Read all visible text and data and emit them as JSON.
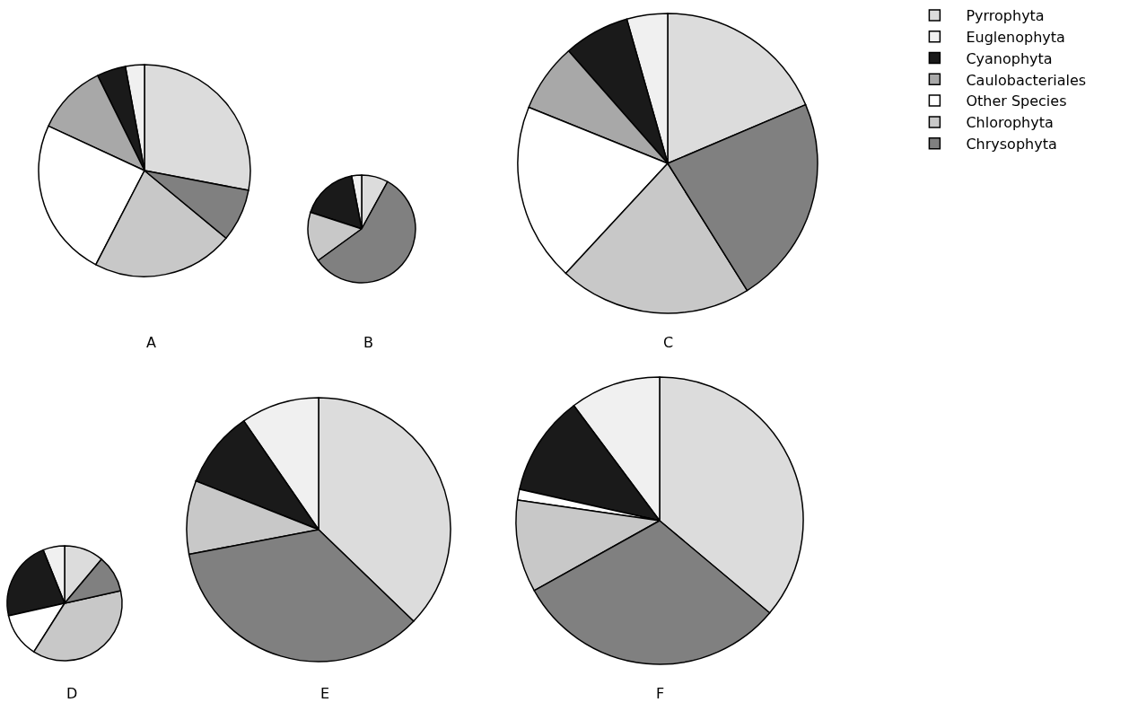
{
  "chart_data": [
    {
      "type": "pie",
      "title": "A",
      "legend": "right",
      "categories": [
        "Pyrrophyta",
        "Euglenophyta",
        "Cyanophyta",
        "Caulobacteriales",
        "Other Species",
        "Chlorophyta",
        "Chrysophyta"
      ],
      "values": [
        28,
        2.9,
        4.4,
        10.8,
        24.3,
        21.6,
        8
      ],
      "colors": [
        "#dcdcdc",
        "#f0f0f0",
        "#1a1a1a",
        "#a8a8a8",
        "#ffffff",
        "#c8c8c8",
        "#808080"
      ]
    },
    {
      "type": "pie",
      "title": "B",
      "categories": [
        null,
        null,
        null,
        null,
        null,
        null,
        null
      ],
      "values": [
        8,
        3,
        17,
        0,
        0,
        15,
        57
      ],
      "colors": [
        "#dcdcdc",
        "#f0f0f0",
        "#1a1a1a",
        "#a8a8a8",
        "#ffffff",
        "#c8c8c8",
        "#808080"
      ]
    },
    {
      "type": "pie",
      "title": "C",
      "categories": [
        null,
        null,
        null,
        null,
        null,
        null,
        null
      ],
      "values": [
        18.6,
        4.4,
        7.1,
        7.4,
        19.2,
        20.8,
        22.5
      ],
      "colors": [
        "#dcdcdc",
        "#f0f0f0",
        "#1a1a1a",
        "#a8a8a8",
        "#ffffff",
        "#c8c8c8",
        "#808080"
      ]
    },
    {
      "type": "pie",
      "title": "D",
      "categories": [
        null,
        null,
        null,
        null,
        null,
        null,
        null
      ],
      "values": [
        11.1,
        6.1,
        22.4,
        0,
        12.5,
        37.5,
        10.4
      ],
      "colors": [
        "#dcdcdc",
        "#f0f0f0",
        "#1a1a1a",
        "#a8a8a8",
        "#ffffff",
        "#c8c8c8",
        "#808080"
      ]
    },
    {
      "type": "pie",
      "title": "E",
      "categories": [
        null,
        null,
        null,
        null,
        null,
        null,
        null
      ],
      "values": [
        37.2,
        9.6,
        9.4,
        0,
        0,
        9.0,
        34.8
      ],
      "colors": [
        "#dcdcdc",
        "#f0f0f0",
        "#1a1a1a",
        "#a8a8a8",
        "#ffffff",
        "#c8c8c8",
        "#808080"
      ]
    },
    {
      "type": "pie",
      "title": "F",
      "categories": [
        null,
        null,
        null,
        null,
        null,
        null,
        null
      ],
      "values": [
        36.1,
        10.2,
        11.3,
        0,
        1.2,
        10.4,
        30.8
      ],
      "colors": [
        "#dcdcdc",
        "#f0f0f0",
        "#1a1a1a",
        "#a8a8a8",
        "#ffffff",
        "#c8c8c8",
        "#808080"
      ]
    }
  ]
}
